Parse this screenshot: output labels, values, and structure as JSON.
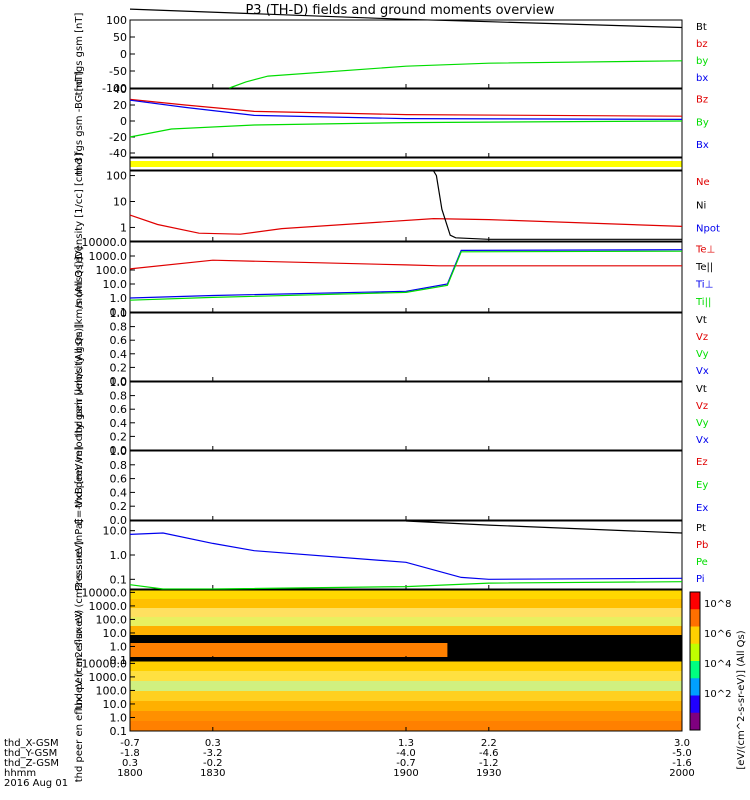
{
  "title": "P3 (TH-D) fields and ground moments overview",
  "colors": {
    "black": "#000000",
    "red": "#e00000",
    "green": "#00dd00",
    "blue": "#0000ee",
    "yellow": "#ffff00"
  },
  "colorbar_label": "[eV/(cm^2-s-sr-eV)] (All Qs)",
  "colorbar_ticks": [
    "10^8",
    "10^6",
    "10^4",
    "10^2"
  ],
  "orbit_labels": [
    "thd_X-GSM",
    "thd_Y-GSM",
    "thd_Z-GSM",
    "hhmm",
    "2016 Aug 01"
  ],
  "chart_data": [
    {
      "type": "line",
      "ylabel": "thd fgs gsm [nT]",
      "yticks": [
        "100",
        "50",
        "0",
        "-50",
        "-100"
      ],
      "ylim": [
        -100,
        100
      ],
      "legend": [
        "Bt",
        "bz",
        "by",
        "bx"
      ],
      "series": [
        {
          "name": "Bt",
          "x": [
            1800,
            1900,
            1930,
            2000
          ],
          "y": [
            132,
            102,
            95,
            78
          ]
        },
        {
          "name": "by",
          "x": [
            1836,
            1842,
            1850,
            1900,
            1930,
            2000
          ],
          "y": [
            -100,
            -82,
            -65,
            -36,
            -27,
            -20
          ]
        }
      ]
    },
    {
      "type": "line",
      "ylabel": "thd fgs gsm -BG [nT]",
      "yticks": [
        "40",
        "20",
        "0",
        "-20",
        "-40"
      ],
      "ylim": [
        -45,
        40
      ],
      "legend": [
        "Bz",
        "By",
        "Bx"
      ],
      "series": [
        {
          "name": "Bz",
          "x": [
            1800,
            1820,
            1845,
            1900,
            2000
          ],
          "y": [
            27,
            20,
            12,
            8,
            6
          ]
        },
        {
          "name": "Bx",
          "x": [
            1800,
            1820,
            1845,
            1900,
            2000
          ],
          "y": [
            26,
            17,
            7,
            3,
            2
          ]
        },
        {
          "name": "By",
          "x": [
            1800,
            1815,
            1845,
            1900,
            2000
          ],
          "y": [
            -20,
            -10,
            -5,
            -2,
            0
          ]
        }
      ]
    },
    {
      "type": "line",
      "ylabel": "Density [1/cc] [cm-3]",
      "yticks": [
        "100",
        "10",
        "1"
      ],
      "ylim": [
        0.3,
        150
      ],
      "scale": "log",
      "legend": [
        "Ne",
        "Ni",
        "Npot"
      ],
      "series": [
        {
          "name": "Ne",
          "x": [
            1800,
            1810,
            1825,
            1840,
            1855,
            1910,
            1930,
            2000
          ],
          "y": [
            3,
            1.3,
            0.6,
            0.55,
            0.9,
            2.2,
            2,
            1.1
          ]
        },
        {
          "name": "Ni",
          "x": [
            1910,
            1911,
            1913,
            1916,
            1918,
            1930,
            2000
          ],
          "y": [
            150,
            100,
            5,
            0.5,
            0.4,
            0.35,
            0.35
          ]
        }
      ]
    },
    {
      "type": "line",
      "ylabel": "moms3 [eV]",
      "yticks": [
        "10000.0",
        "1000.0",
        "100.0",
        "10.0",
        "1.0",
        "0.1"
      ],
      "ylim": [
        0.1,
        10000
      ],
      "scale": "log",
      "legend": [
        "Te⊥",
        "Te||",
        "Ti⊥",
        "Ti||"
      ],
      "series": [
        {
          "name": "Te⊥",
          "x": [
            1800,
            1830,
            1900,
            1912,
            2000
          ],
          "y": [
            120,
            500,
            230,
            200,
            200
          ]
        },
        {
          "name": "Ti⊥",
          "x": [
            1800,
            1830,
            1900,
            1915,
            1920,
            2000
          ],
          "y": [
            1,
            1.5,
            3,
            10,
            2500,
            2800
          ]
        },
        {
          "name": "Ti||",
          "x": [
            1800,
            1830,
            1900,
            1915,
            1920,
            2000
          ],
          "y": [
            0.7,
            1.1,
            2.5,
            8,
            2000,
            2200
          ]
        }
      ]
    },
    {
      "type": "line",
      "ylabel": "thd peir velocity gsm [km/s (All Qs)]",
      "yticks": [
        "1.0",
        "0.8",
        "0.6",
        "0.4",
        "0.2",
        "0.0"
      ],
      "ylim": [
        0,
        1
      ],
      "legend": [
        "Vt",
        "Vz",
        "Vy",
        "Vx"
      ],
      "series": []
    },
    {
      "type": "line",
      "ylabel": "thd peer velocity gsm [km/s (All Qs)]",
      "yticks": [
        "1.0",
        "0.8",
        "0.6",
        "0.4",
        "0.2",
        "0.0"
      ],
      "ylim": [
        0,
        1
      ],
      "legend": [
        "Vt",
        "Vz",
        "Vy",
        "Vx"
      ],
      "series": []
    },
    {
      "type": "line",
      "ylabel": "E=-VxB [mV/m]",
      "yticks": [
        "1.0",
        "0.8",
        "0.6",
        "0.4",
        "0.2",
        "0.0"
      ],
      "ylim": [
        0,
        1
      ],
      "legend": [
        "Ez",
        "Ey",
        "Ex"
      ],
      "series": []
    },
    {
      "type": "line",
      "ylabel": "Pressure [nPa]",
      "yticks": [
        "10.0",
        "1.0",
        "0.1"
      ],
      "ylim": [
        0.04,
        25
      ],
      "scale": "log",
      "legend": [
        "Pt",
        "Pb",
        "Pe",
        "Pi"
      ],
      "series": [
        {
          "name": "Pt",
          "x": [
            1900,
            1930,
            2000
          ],
          "y": [
            25,
            17,
            8
          ]
        },
        {
          "name": "Pi",
          "x": [
            1800,
            1812,
            1830,
            1845,
            1900,
            1920,
            1930,
            2000
          ],
          "y": [
            7,
            8,
            3,
            1.5,
            0.5,
            0.12,
            0.1,
            0.11
          ]
        },
        {
          "name": "Pe",
          "x": [
            1800,
            1812,
            1830,
            1900,
            1930,
            2000
          ],
          "y": [
            0.06,
            0.04,
            0.04,
            0.05,
            0.07,
            0.08
          ]
        }
      ]
    },
    {
      "type": "heatmap",
      "ylabel": "thd peir en eflux eV (cm2-s-sr-eV)",
      "yticks": [
        "10000.0",
        "1000.0",
        "100.0",
        "10.0",
        "1.0",
        "0.1"
      ],
      "ylim": [
        0.1,
        15000
      ],
      "scale": "log"
    },
    {
      "type": "heatmap",
      "ylabel": "thd peer en eflux eV (cm2-s-sr-eV)",
      "yticks": [
        "10000.0",
        "1000.0",
        "100.0",
        "10.0",
        "1.0",
        "0.1"
      ],
      "ylim": [
        0.1,
        15000
      ],
      "scale": "log"
    }
  ],
  "x_axis": {
    "range": [
      1800,
      2000
    ],
    "hhmm": [
      "1800",
      "1830",
      "1900",
      "1930",
      "2000"
    ],
    "X_GSM": [
      "-0.7",
      "0.3",
      "1.3",
      "2.2",
      "3.0"
    ],
    "Y_GSM": [
      "-1.8",
      "-3.2",
      "-4.0",
      "-4.6",
      "-5.0"
    ],
    "Z_GSM": [
      "0.3",
      "-0.2",
      "-0.7",
      "-1.2",
      "-1.6"
    ]
  }
}
